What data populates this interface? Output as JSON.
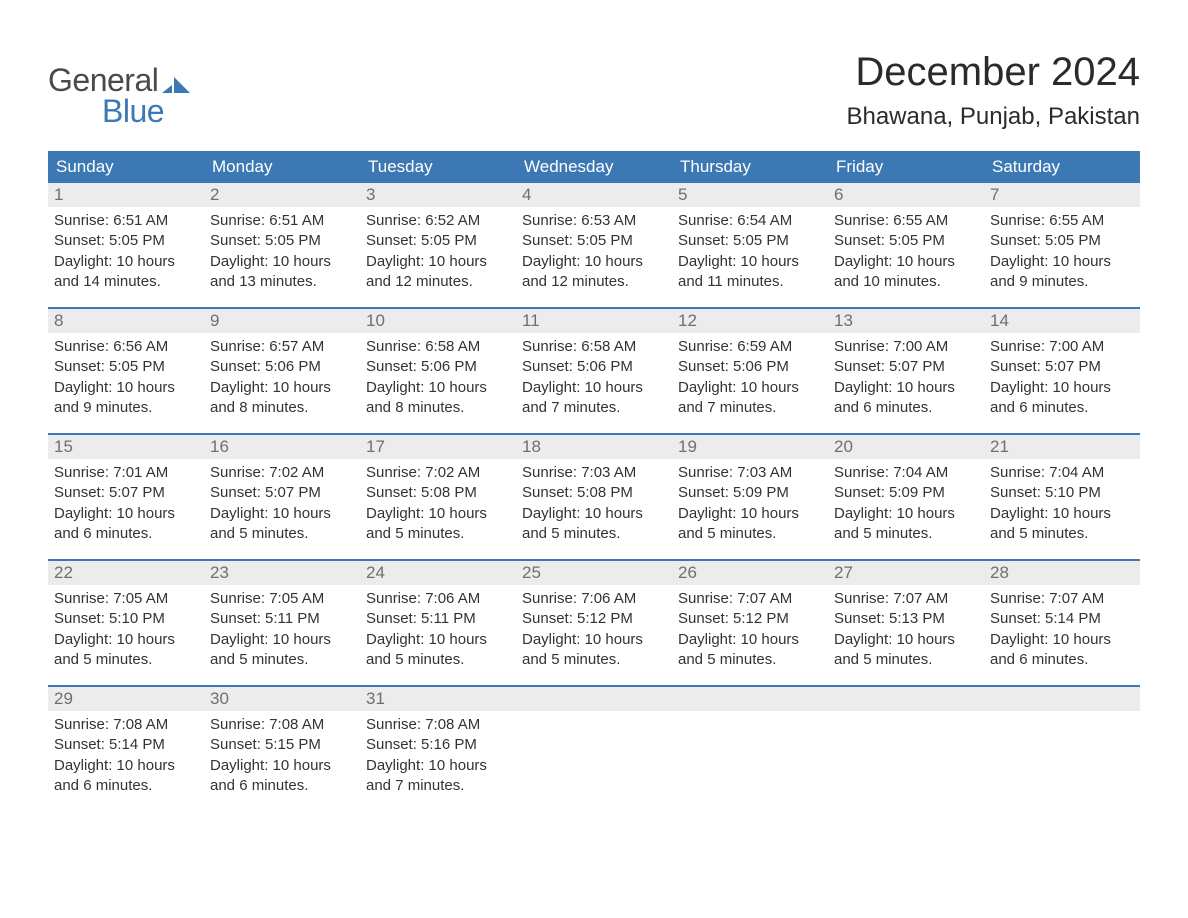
{
  "logo": {
    "text_top": "General",
    "text_bottom": "Blue",
    "top_color": "#4a4a4a",
    "bottom_color": "#3c79b4"
  },
  "title": "December 2024",
  "location": "Bhawana, Punjab, Pakistan",
  "header_bg": "#3c79b4",
  "header_text_color": "#ffffff",
  "daynum_bg": "#ececec",
  "daynum_color": "#6f6f6f",
  "border_color": "#3c79b4",
  "body_text_color": "#333333",
  "background_color": "#ffffff",
  "font_family": "Arial, Helvetica, sans-serif",
  "title_fontsize": 40,
  "location_fontsize": 24,
  "header_fontsize": 17,
  "daynum_fontsize": 17,
  "content_fontsize": 15,
  "day_names": [
    "Sunday",
    "Monday",
    "Tuesday",
    "Wednesday",
    "Thursday",
    "Friday",
    "Saturday"
  ],
  "weeks": [
    [
      {
        "num": "1",
        "sunrise": "Sunrise: 6:51 AM",
        "sunset": "Sunset: 5:05 PM",
        "day1": "Daylight: 10 hours",
        "day2": "and 14 minutes."
      },
      {
        "num": "2",
        "sunrise": "Sunrise: 6:51 AM",
        "sunset": "Sunset: 5:05 PM",
        "day1": "Daylight: 10 hours",
        "day2": "and 13 minutes."
      },
      {
        "num": "3",
        "sunrise": "Sunrise: 6:52 AM",
        "sunset": "Sunset: 5:05 PM",
        "day1": "Daylight: 10 hours",
        "day2": "and 12 minutes."
      },
      {
        "num": "4",
        "sunrise": "Sunrise: 6:53 AM",
        "sunset": "Sunset: 5:05 PM",
        "day1": "Daylight: 10 hours",
        "day2": "and 12 minutes."
      },
      {
        "num": "5",
        "sunrise": "Sunrise: 6:54 AM",
        "sunset": "Sunset: 5:05 PM",
        "day1": "Daylight: 10 hours",
        "day2": "and 11 minutes."
      },
      {
        "num": "6",
        "sunrise": "Sunrise: 6:55 AM",
        "sunset": "Sunset: 5:05 PM",
        "day1": "Daylight: 10 hours",
        "day2": "and 10 minutes."
      },
      {
        "num": "7",
        "sunrise": "Sunrise: 6:55 AM",
        "sunset": "Sunset: 5:05 PM",
        "day1": "Daylight: 10 hours",
        "day2": "and 9 minutes."
      }
    ],
    [
      {
        "num": "8",
        "sunrise": "Sunrise: 6:56 AM",
        "sunset": "Sunset: 5:05 PM",
        "day1": "Daylight: 10 hours",
        "day2": "and 9 minutes."
      },
      {
        "num": "9",
        "sunrise": "Sunrise: 6:57 AM",
        "sunset": "Sunset: 5:06 PM",
        "day1": "Daylight: 10 hours",
        "day2": "and 8 minutes."
      },
      {
        "num": "10",
        "sunrise": "Sunrise: 6:58 AM",
        "sunset": "Sunset: 5:06 PM",
        "day1": "Daylight: 10 hours",
        "day2": "and 8 minutes."
      },
      {
        "num": "11",
        "sunrise": "Sunrise: 6:58 AM",
        "sunset": "Sunset: 5:06 PM",
        "day1": "Daylight: 10 hours",
        "day2": "and 7 minutes."
      },
      {
        "num": "12",
        "sunrise": "Sunrise: 6:59 AM",
        "sunset": "Sunset: 5:06 PM",
        "day1": "Daylight: 10 hours",
        "day2": "and 7 minutes."
      },
      {
        "num": "13",
        "sunrise": "Sunrise: 7:00 AM",
        "sunset": "Sunset: 5:07 PM",
        "day1": "Daylight: 10 hours",
        "day2": "and 6 minutes."
      },
      {
        "num": "14",
        "sunrise": "Sunrise: 7:00 AM",
        "sunset": "Sunset: 5:07 PM",
        "day1": "Daylight: 10 hours",
        "day2": "and 6 minutes."
      }
    ],
    [
      {
        "num": "15",
        "sunrise": "Sunrise: 7:01 AM",
        "sunset": "Sunset: 5:07 PM",
        "day1": "Daylight: 10 hours",
        "day2": "and 6 minutes."
      },
      {
        "num": "16",
        "sunrise": "Sunrise: 7:02 AM",
        "sunset": "Sunset: 5:07 PM",
        "day1": "Daylight: 10 hours",
        "day2": "and 5 minutes."
      },
      {
        "num": "17",
        "sunrise": "Sunrise: 7:02 AM",
        "sunset": "Sunset: 5:08 PM",
        "day1": "Daylight: 10 hours",
        "day2": "and 5 minutes."
      },
      {
        "num": "18",
        "sunrise": "Sunrise: 7:03 AM",
        "sunset": "Sunset: 5:08 PM",
        "day1": "Daylight: 10 hours",
        "day2": "and 5 minutes."
      },
      {
        "num": "19",
        "sunrise": "Sunrise: 7:03 AM",
        "sunset": "Sunset: 5:09 PM",
        "day1": "Daylight: 10 hours",
        "day2": "and 5 minutes."
      },
      {
        "num": "20",
        "sunrise": "Sunrise: 7:04 AM",
        "sunset": "Sunset: 5:09 PM",
        "day1": "Daylight: 10 hours",
        "day2": "and 5 minutes."
      },
      {
        "num": "21",
        "sunrise": "Sunrise: 7:04 AM",
        "sunset": "Sunset: 5:10 PM",
        "day1": "Daylight: 10 hours",
        "day2": "and 5 minutes."
      }
    ],
    [
      {
        "num": "22",
        "sunrise": "Sunrise: 7:05 AM",
        "sunset": "Sunset: 5:10 PM",
        "day1": "Daylight: 10 hours",
        "day2": "and 5 minutes."
      },
      {
        "num": "23",
        "sunrise": "Sunrise: 7:05 AM",
        "sunset": "Sunset: 5:11 PM",
        "day1": "Daylight: 10 hours",
        "day2": "and 5 minutes."
      },
      {
        "num": "24",
        "sunrise": "Sunrise: 7:06 AM",
        "sunset": "Sunset: 5:11 PM",
        "day1": "Daylight: 10 hours",
        "day2": "and 5 minutes."
      },
      {
        "num": "25",
        "sunrise": "Sunrise: 7:06 AM",
        "sunset": "Sunset: 5:12 PM",
        "day1": "Daylight: 10 hours",
        "day2": "and 5 minutes."
      },
      {
        "num": "26",
        "sunrise": "Sunrise: 7:07 AM",
        "sunset": "Sunset: 5:12 PM",
        "day1": "Daylight: 10 hours",
        "day2": "and 5 minutes."
      },
      {
        "num": "27",
        "sunrise": "Sunrise: 7:07 AM",
        "sunset": "Sunset: 5:13 PM",
        "day1": "Daylight: 10 hours",
        "day2": "and 5 minutes."
      },
      {
        "num": "28",
        "sunrise": "Sunrise: 7:07 AM",
        "sunset": "Sunset: 5:14 PM",
        "day1": "Daylight: 10 hours",
        "day2": "and 6 minutes."
      }
    ],
    [
      {
        "num": "29",
        "sunrise": "Sunrise: 7:08 AM",
        "sunset": "Sunset: 5:14 PM",
        "day1": "Daylight: 10 hours",
        "day2": "and 6 minutes."
      },
      {
        "num": "30",
        "sunrise": "Sunrise: 7:08 AM",
        "sunset": "Sunset: 5:15 PM",
        "day1": "Daylight: 10 hours",
        "day2": "and 6 minutes."
      },
      {
        "num": "31",
        "sunrise": "Sunrise: 7:08 AM",
        "sunset": "Sunset: 5:16 PM",
        "day1": "Daylight: 10 hours",
        "day2": "and 7 minutes."
      },
      null,
      null,
      null,
      null
    ]
  ]
}
